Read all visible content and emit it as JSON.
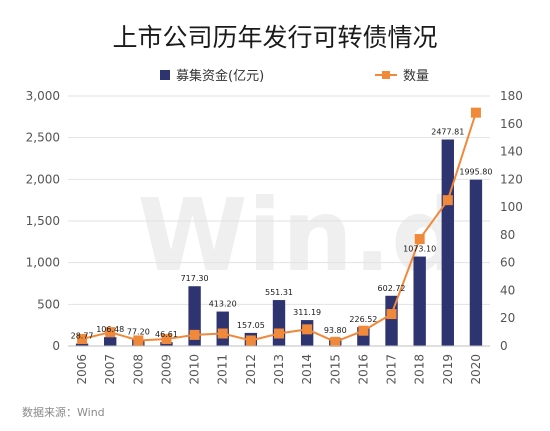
{
  "title": "上市公司历年发行可转债情况",
  "source": "数据来源：Wind",
  "watermark": "Win.d",
  "colors": {
    "bar": "#2e3470",
    "line": "#f0893a",
    "grid": "#e2e2e2"
  },
  "chart_data": {
    "type": "bar",
    "categories": [
      "2006",
      "2007",
      "2008",
      "2009",
      "2010",
      "2011",
      "2012",
      "2013",
      "2014",
      "2015",
      "2016",
      "2017",
      "2018",
      "2019",
      "2020"
    ],
    "series": [
      {
        "name": "募集资金(亿元)",
        "type": "bar",
        "axis": "left",
        "values": [
          28.77,
          106.48,
          77.2,
          46.61,
          717.3,
          413.2,
          157.05,
          551.31,
          311.19,
          93.8,
          226.52,
          602.72,
          1073.1,
          2477.81,
          1995.8
        ],
        "labels": [
          "28.77",
          "106.48",
          "77.20",
          "46.61",
          "717.30",
          "413.20",
          "157.05",
          "551.31",
          "311.19",
          "93.80",
          "226.52",
          "602.72",
          "1073.10",
          "2477.81",
          "1995.80"
        ]
      },
      {
        "name": "数量",
        "type": "line",
        "axis": "right",
        "values": [
          5,
          10,
          4,
          5,
          8,
          9,
          4,
          9,
          12,
          3,
          11,
          23,
          77,
          105,
          168
        ]
      }
    ],
    "y_left": {
      "min": 0,
      "max": 3000,
      "ticks": [
        "0",
        "500",
        "1,000",
        "1,500",
        "2,000",
        "2,500",
        "3,000"
      ]
    },
    "y_right": {
      "min": 0,
      "max": 180,
      "ticks": [
        "0",
        "20",
        "40",
        "60",
        "80",
        "100",
        "120",
        "140",
        "160",
        "180"
      ]
    },
    "legend_position": "top",
    "grid": "horizontal"
  }
}
